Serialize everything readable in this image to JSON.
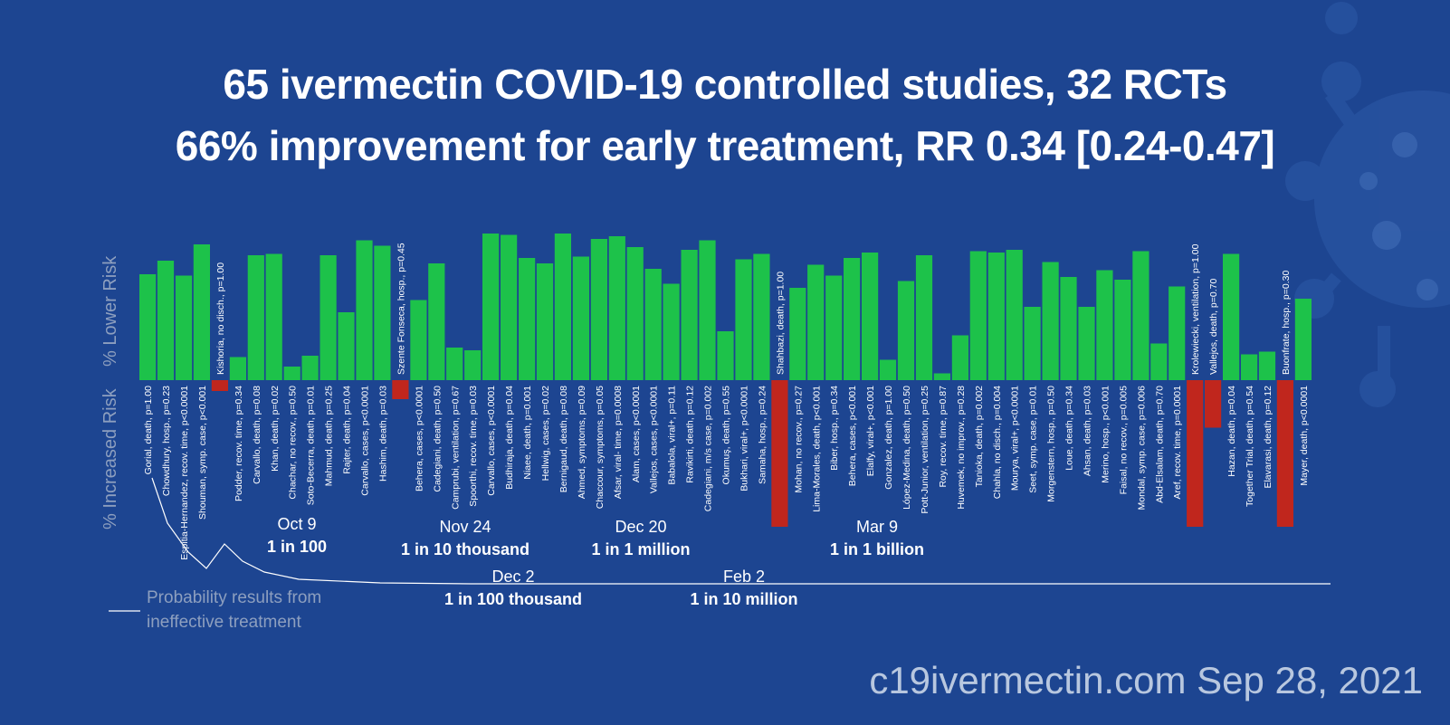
{
  "title_line1": "65 ivermectin COVID-19 controlled studies, 32 RCTs",
  "title_line2": "66% improvement for early treatment, RR 0.34 [0.24-0.47]",
  "footer": "c19ivermectin.com Sep 28, 2021",
  "colors": {
    "background": "#1d4591",
    "positive": "#1dc24a",
    "negative": "#c0261d",
    "axis_text": "#8d9fbf",
    "probability_line": "#ffffff"
  },
  "chart_data": {
    "type": "bar",
    "ylabel_increased": "% Increased Risk",
    "ylabel_lower": "% Lower Risk",
    "categories": [
      "Gorial, death, p=1.00",
      "Chowdhury, hosp., p=0.23",
      "Espitia-Hernandez, recov. time, p<0.0001",
      "Shouman, symp. case, p<0.001",
      "Kishoria, no disch., p=1.00",
      "Podder, recov. time, p=0.34",
      "Carvallo, death, p=0.08",
      "Khan, death, p=0.02",
      "Chachar, no recov., p=0.50",
      "Soto-Becerra, death, p=0.01",
      "Mahmud, death, p=0.25",
      "Rajter, death, p=0.04",
      "Carvallo, cases, p<0.0001",
      "Hashim, death, p=0.03",
      "Szente Fonseca, hosp., p=0.45",
      "Behera, cases, p<0.0001",
      "Cadegiani, death, p=0.50",
      "Camprubi, ventilation, p=0.67",
      "Spoorthi, recov. time, p=0.03",
      "Carvallo, cases, p<0.0001",
      "Budhiraja, death, p=0.04",
      "Niaee, death, p=0.001",
      "Hellwig, cases, p=0.02",
      "Bernigaud, death, p=0.08",
      "Ahmed, symptoms, p=0.09",
      "Chaccour, symptoms, p=0.05",
      "Afsar, viral- time, p=0.0008",
      "Alam, cases, p<0.0001",
      "Vallejos, cases, p<0.0001",
      "Babalola, viral+, p=0.11",
      "Ravikirti, death, p=0.12",
      "Cadegiani, m/s case, p=0.002",
      "Okumuş, death, p=0.55",
      "Bukhari, viral+, p<0.0001",
      "Samaha, hosp., p=0.24",
      "Shahbazi, death, p=1.00",
      "Mohan, no recov., p=0.27",
      "Lima-Morales, death, p<0.001",
      "Biber, hosp., p=0.34",
      "Behera, cases, p<0.001",
      "Elalfy, viral+, p<0.001",
      "Gonzalez, death, p=1.00",
      "López-Medina, death, p=0.50",
      "Pott-Junior, ventilation, p=0.25",
      "Roy, recov. time, p=0.87",
      "Huvemek, no improv., p=0.28",
      "Tanioka, death, p=0.002",
      "Chahla, no disch., p=0.004",
      "Mourya, viral+, p<0.0001",
      "Seet, symp. case, p=0.01",
      "Morgenstern, hosp., p=0.50",
      "Loue, death, p=0.34",
      "Ahsan, death, p=0.03",
      "Merino, hosp., p<0.001",
      "Faisal, no recov., p=0.005",
      "Mondal, symp. case, p=0.006",
      "Abd-Elsalam, death, p=0.70",
      "Aref, recov. time, p=0.0001",
      "Krolewiecki, ventilation, p=1.00",
      "Vallejos, death, p=0.70",
      "Hazan, death, p=0.04",
      "Together Trial, death, p=0.54",
      "Elavarasi, death, p=0.12",
      "Buonfrate, hosp., p=0.30",
      "Mayer, death, p<0.0001"
    ],
    "values": [
      78,
      88,
      77,
      100,
      -8,
      17,
      92,
      93,
      10,
      18,
      92,
      50,
      103,
      99,
      -14,
      59,
      86,
      24,
      22,
      108,
      107,
      90,
      86,
      108,
      91,
      104,
      106,
      98,
      82,
      71,
      96,
      103,
      36,
      89,
      93,
      -108,
      68,
      85,
      77,
      90,
      94,
      15,
      73,
      92,
      5,
      33,
      95,
      94,
      96,
      54,
      87,
      76,
      54,
      81,
      74,
      95,
      27,
      69,
      -108,
      -35,
      93,
      19,
      21,
      -108,
      60
    ],
    "ylim": [
      -110,
      110
    ],
    "bar_labels_above": [
      4,
      14,
      35,
      58,
      59,
      63
    ],
    "annotations_top": [
      {
        "date": "Oct 9",
        "label": "1 in 100"
      },
      {
        "date": "Nov 24",
        "label": "1 in 10 thousand"
      },
      {
        "date": "Dec 20",
        "label": "1 in 1 million"
      },
      {
        "date": "Mar 9",
        "label": "1 in 1 billion"
      }
    ],
    "annotations_bottom": [
      {
        "date": "Dec 2",
        "label": "1 in 100 thousand"
      },
      {
        "date": "Feb 2",
        "label": "1 in 10 million"
      }
    ],
    "legend": {
      "line1": "Probability results from",
      "line2": "ineffective treatment"
    }
  }
}
